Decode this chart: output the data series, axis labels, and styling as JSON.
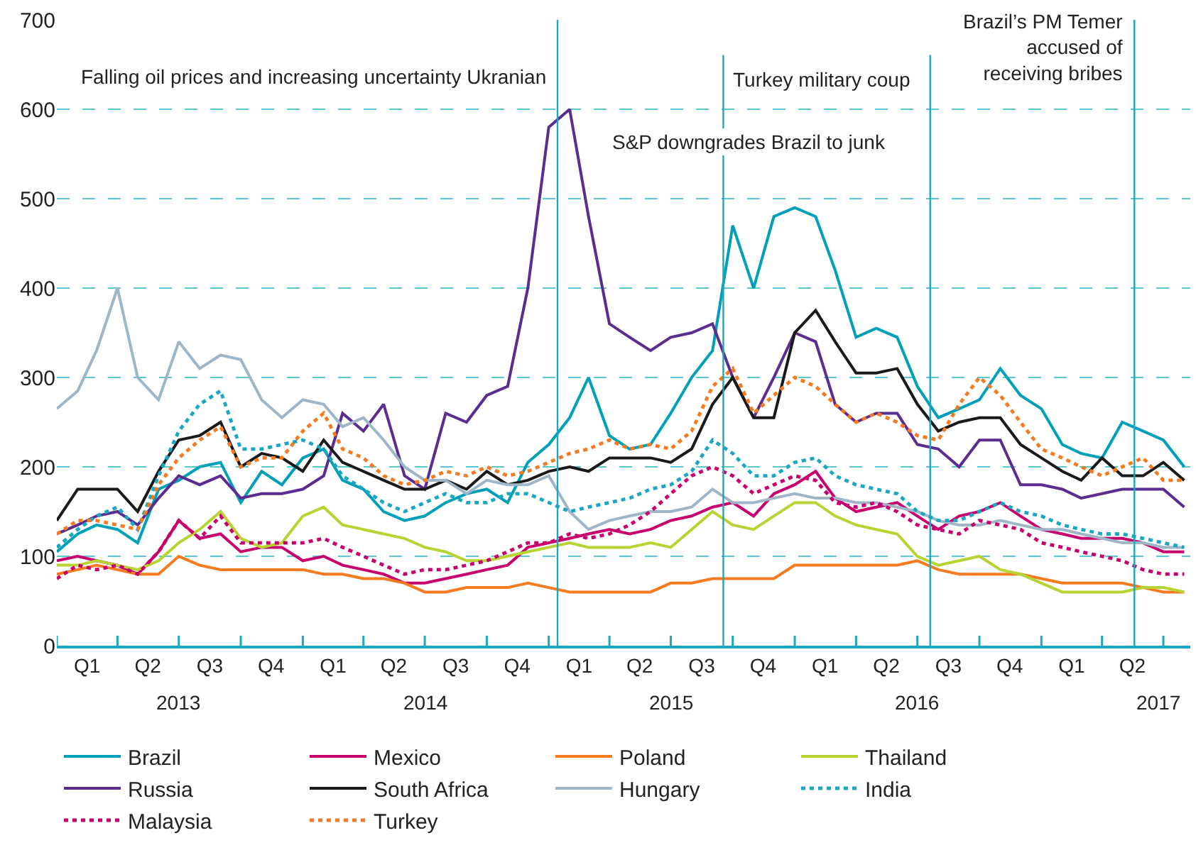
{
  "chart_data": {
    "type": "line",
    "x": [
      "2013-01",
      "2013-02",
      "2013-03",
      "2013-04",
      "2013-05",
      "2013-06",
      "2013-07",
      "2013-08",
      "2013-09",
      "2013-10",
      "2013-11",
      "2013-12",
      "2014-01",
      "2014-02",
      "2014-03",
      "2014-04",
      "2014-05",
      "2014-06",
      "2014-07",
      "2014-08",
      "2014-09",
      "2014-10",
      "2014-11",
      "2014-12",
      "2015-01",
      "2015-02",
      "2015-03",
      "2015-04",
      "2015-05",
      "2015-06",
      "2015-07",
      "2015-08",
      "2015-09",
      "2015-10",
      "2015-11",
      "2015-12",
      "2016-01",
      "2016-02",
      "2016-03",
      "2016-04",
      "2016-05",
      "2016-06",
      "2016-07",
      "2016-08",
      "2016-09",
      "2016-10",
      "2016-11",
      "2016-12",
      "2017-01",
      "2017-02",
      "2017-03",
      "2017-04",
      "2017-05",
      "2017-06",
      "2017-07",
      "2017-08"
    ],
    "series": [
      {
        "name": "Brazil",
        "color": "#00a0b8",
        "line_style": "solid",
        "values": [
          105,
          125,
          135,
          130,
          115,
          175,
          185,
          200,
          205,
          160,
          195,
          180,
          210,
          220,
          185,
          175,
          150,
          140,
          145,
          160,
          170,
          175,
          160,
          205,
          225,
          255,
          300,
          235,
          220,
          225,
          260,
          300,
          330,
          470,
          400,
          480,
          490,
          480,
          420,
          345,
          355,
          345,
          290,
          255,
          265,
          275,
          310,
          280,
          265,
          225,
          215,
          210,
          250,
          240,
          230,
          200
        ]
      },
      {
        "name": "Mexico",
        "color": "#c8006e",
        "line_style": "solid",
        "values": [
          95,
          100,
          95,
          90,
          80,
          105,
          140,
          120,
          125,
          105,
          110,
          110,
          95,
          100,
          90,
          85,
          80,
          70,
          70,
          75,
          80,
          85,
          90,
          110,
          115,
          120,
          125,
          130,
          125,
          130,
          140,
          145,
          155,
          160,
          145,
          170,
          180,
          195,
          165,
          150,
          155,
          160,
          145,
          130,
          145,
          150,
          160,
          145,
          130,
          125,
          120,
          120,
          120,
          115,
          105,
          105
        ]
      },
      {
        "name": "Poland",
        "color": "#f47b20",
        "line_style": "solid",
        "values": [
          80,
          85,
          90,
          85,
          80,
          80,
          100,
          90,
          85,
          85,
          85,
          85,
          85,
          80,
          80,
          75,
          75,
          70,
          60,
          60,
          65,
          65,
          65,
          70,
          65,
          60,
          60,
          60,
          60,
          60,
          70,
          70,
          75,
          75,
          75,
          75,
          90,
          90,
          90,
          90,
          90,
          90,
          95,
          85,
          80,
          80,
          80,
          80,
          75,
          70,
          70,
          70,
          70,
          65,
          60,
          60
        ]
      },
      {
        "name": "Thailand",
        "color": "#b7d432",
        "line_style": "solid",
        "values": [
          90,
          90,
          95,
          90,
          85,
          95,
          115,
          130,
          150,
          120,
          110,
          115,
          145,
          155,
          135,
          130,
          125,
          120,
          110,
          105,
          95,
          95,
          100,
          105,
          110,
          115,
          110,
          110,
          110,
          115,
          110,
          130,
          150,
          135,
          130,
          145,
          160,
          160,
          145,
          135,
          130,
          125,
          100,
          90,
          95,
          100,
          85,
          80,
          70,
          60,
          60,
          60,
          60,
          65,
          65,
          60
        ]
      },
      {
        "name": "Russia",
        "color": "#5c2d91",
        "line_style": "solid",
        "values": [
          125,
          135,
          145,
          150,
          135,
          165,
          190,
          180,
          190,
          165,
          170,
          170,
          175,
          190,
          260,
          240,
          270,
          190,
          175,
          260,
          250,
          280,
          290,
          400,
          580,
          600,
          480,
          360,
          345,
          330,
          345,
          350,
          360,
          300,
          255,
          300,
          350,
          340,
          270,
          250,
          260,
          260,
          225,
          220,
          200,
          230,
          230,
          180,
          180,
          175,
          165,
          170,
          175,
          175,
          175,
          155
        ]
      },
      {
        "name": "South Africa",
        "color": "#1a1a1a",
        "line_style": "solid",
        "values": [
          140,
          175,
          175,
          175,
          150,
          195,
          230,
          235,
          250,
          200,
          215,
          210,
          195,
          230,
          205,
          195,
          185,
          175,
          175,
          185,
          175,
          195,
          180,
          185,
          195,
          200,
          195,
          210,
          210,
          210,
          205,
          220,
          270,
          300,
          255,
          255,
          350,
          375,
          340,
          305,
          305,
          310,
          270,
          240,
          250,
          255,
          255,
          225,
          210,
          195,
          185,
          210,
          190,
          190,
          205,
          185
        ]
      },
      {
        "name": "Hungary",
        "color": "#9fb6c8",
        "line_style": "solid",
        "values": [
          265,
          285,
          330,
          400,
          300,
          275,
          340,
          310,
          325,
          320,
          275,
          255,
          275,
          270,
          245,
          255,
          230,
          200,
          185,
          185,
          170,
          185,
          180,
          180,
          190,
          150,
          130,
          140,
          145,
          150,
          150,
          155,
          175,
          160,
          160,
          165,
          170,
          165,
          165,
          160,
          160,
          155,
          150,
          140,
          135,
          135,
          140,
          135,
          130,
          130,
          125,
          120,
          115,
          115,
          110,
          110
        ]
      },
      {
        "name": "India",
        "color": "#1aa7c0",
        "line_style": "dotted",
        "values": [
          110,
          130,
          145,
          155,
          130,
          190,
          240,
          270,
          285,
          220,
          220,
          225,
          230,
          220,
          190,
          175,
          160,
          150,
          160,
          170,
          160,
          160,
          170,
          170,
          160,
          150,
          155,
          160,
          165,
          175,
          180,
          195,
          230,
          215,
          190,
          190,
          205,
          210,
          190,
          180,
          175,
          170,
          150,
          140,
          140,
          150,
          160,
          150,
          145,
          135,
          130,
          125,
          125,
          120,
          115,
          110
        ]
      },
      {
        "name": "Malaysia",
        "color": "#c8006e",
        "line_style": "dotted",
        "values": [
          75,
          90,
          85,
          90,
          80,
          105,
          140,
          120,
          145,
          115,
          115,
          115,
          115,
          120,
          110,
          100,
          90,
          80,
          85,
          85,
          90,
          95,
          105,
          115,
          115,
          125,
          120,
          125,
          135,
          150,
          170,
          190,
          200,
          190,
          170,
          180,
          190,
          185,
          160,
          155,
          160,
          150,
          135,
          130,
          125,
          140,
          135,
          130,
          115,
          110,
          105,
          100,
          95,
          85,
          80,
          80
        ]
      },
      {
        "name": "Turkey",
        "color": "#f47b20",
        "line_style": "dotted",
        "values": [
          125,
          140,
          140,
          135,
          130,
          180,
          210,
          230,
          245,
          200,
          210,
          210,
          240,
          260,
          220,
          210,
          190,
          180,
          185,
          195,
          190,
          200,
          190,
          195,
          205,
          215,
          220,
          230,
          220,
          225,
          220,
          240,
          290,
          310,
          260,
          280,
          300,
          290,
          270,
          250,
          260,
          250,
          235,
          230,
          270,
          300,
          280,
          250,
          220,
          210,
          200,
          190,
          200,
          210,
          185,
          185
        ]
      }
    ],
    "xlim": [
      "2013-01-01",
      "2017-08-10"
    ],
    "xticks": [
      {
        "value": "2013-01-01",
        "label": null
      },
      {
        "value": "2013-02-15",
        "label": "Q1"
      },
      {
        "value": "2013-04-01",
        "label": null
      },
      {
        "value": "2013-05-16",
        "label": "Q2"
      },
      {
        "value": "2013-07-01",
        "label": null
      },
      {
        "value": "2013-08-16",
        "label": "Q3"
      },
      {
        "value": "2013-10-01",
        "label": null
      },
      {
        "value": "2013-11-15",
        "label": "Q4"
      },
      {
        "value": "2014-01-01",
        "label": null
      },
      {
        "value": "2014-02-15",
        "label": "Q1"
      },
      {
        "value": "2014-04-01",
        "label": null
      },
      {
        "value": "2014-05-16",
        "label": "Q2"
      },
      {
        "value": "2014-07-01",
        "label": null
      },
      {
        "value": "2014-08-16",
        "label": "Q3"
      },
      {
        "value": "2014-10-01",
        "label": null
      },
      {
        "value": "2014-11-15",
        "label": "Q4"
      },
      {
        "value": "2015-01-01",
        "label": null
      },
      {
        "value": "2015-02-15",
        "label": "Q1"
      },
      {
        "value": "2015-04-01",
        "label": null
      },
      {
        "value": "2015-05-16",
        "label": "Q2"
      },
      {
        "value": "2015-07-01",
        "label": null
      },
      {
        "value": "2015-08-16",
        "label": "Q3"
      },
      {
        "value": "2015-10-01",
        "label": null
      },
      {
        "value": "2015-11-15",
        "label": "Q4"
      },
      {
        "value": "2016-01-01",
        "label": null
      },
      {
        "value": "2016-02-15",
        "label": "Q1"
      },
      {
        "value": "2016-04-01",
        "label": null
      },
      {
        "value": "2016-05-16",
        "label": "Q2"
      },
      {
        "value": "2016-07-01",
        "label": null
      },
      {
        "value": "2016-08-16",
        "label": "Q3"
      },
      {
        "value": "2016-10-01",
        "label": null
      },
      {
        "value": "2016-11-15",
        "label": "Q4"
      },
      {
        "value": "2017-01-01",
        "label": null
      },
      {
        "value": "2017-02-15",
        "label": "Q1"
      },
      {
        "value": "2017-04-01",
        "label": null
      },
      {
        "value": "2017-05-16",
        "label": "Q2"
      },
      {
        "value": "2017-07-01",
        "label": null
      }
    ],
    "x2lim": [
      "2013-01-01",
      "2017-08-10"
    ],
    "x2ticks": [
      {
        "value": "2013-07-01",
        "label": "2013"
      },
      {
        "value": "2014-07-01",
        "label": "2014"
      },
      {
        "value": "2015-07-01",
        "label": "2015"
      },
      {
        "value": "2016-07-01",
        "label": "2016"
      },
      {
        "value": "2017-06-24",
        "label": "2017"
      }
    ],
    "ylim": [
      0,
      700
    ],
    "yticks": [
      0,
      100,
      200,
      300,
      400,
      500,
      600,
      700
    ],
    "grid": "y",
    "legend": "bottom",
    "ref_lines": [
      {
        "axis": "x",
        "value": "2015-01-14",
        "label": "Falling oil prices and increasing uncertainty Ukranian",
        "color": "#1aa7c0",
        "line_style": "solid"
      },
      {
        "axis": "x",
        "value": "2015-09-17",
        "label": "S&P downgrades Brazil to junk",
        "color": "#1aa7c0",
        "line_style": "solid"
      },
      {
        "axis": "x",
        "value": "2016-07-20",
        "label": "Turkey military coup",
        "color": "#1aa7c0",
        "line_style": "solid"
      },
      {
        "axis": "x",
        "value": "2017-05-19",
        "label": "Brazil’s PM Temer\naccused of\nreceiving bribes",
        "color": "#1aa7c0",
        "line_style": "solid"
      }
    ]
  }
}
